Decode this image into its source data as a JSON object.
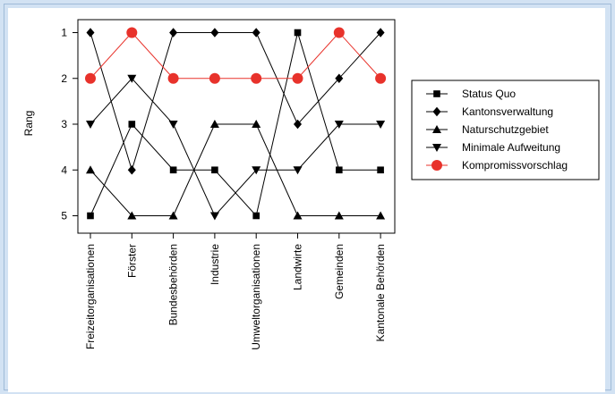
{
  "chart_data": {
    "type": "line",
    "ylabel": "Rang",
    "xlabel": "",
    "categories": [
      "Freizeitorganisationen",
      "Förster",
      "Bundesbehörden",
      "Industrie",
      "Umweltorganisationen",
      "Landwirte",
      "Gemeinden",
      "Kantonale Behörden"
    ],
    "y_ticks": [
      "1",
      "2",
      "3",
      "4",
      "5"
    ],
    "ylim": [
      1,
      5
    ],
    "y_inverted": true,
    "grid": false,
    "legend_position": "right",
    "series": [
      {
        "name": "Status Quo",
        "marker": "square",
        "color": "#000000",
        "values": [
          5,
          3,
          4,
          4,
          5,
          1,
          4,
          4
        ]
      },
      {
        "name": "Kantonsverwaltung",
        "marker": "diamond",
        "color": "#000000",
        "values": [
          1,
          4,
          1,
          1,
          1,
          3,
          2,
          1
        ]
      },
      {
        "name": "Naturschutzgebiet",
        "marker": "triangle-up",
        "color": "#000000",
        "values": [
          4,
          5,
          5,
          3,
          3,
          5,
          5,
          5
        ]
      },
      {
        "name": "Minimale Aufweitung",
        "marker": "triangle-down",
        "color": "#000000",
        "values": [
          3,
          2,
          3,
          5,
          4,
          4,
          3,
          3
        ]
      },
      {
        "name": "Kompromissvorschlag",
        "marker": "circle",
        "color": "#e8322b",
        "values": [
          2,
          1,
          2,
          2,
          2,
          2,
          1,
          2
        ]
      }
    ]
  }
}
